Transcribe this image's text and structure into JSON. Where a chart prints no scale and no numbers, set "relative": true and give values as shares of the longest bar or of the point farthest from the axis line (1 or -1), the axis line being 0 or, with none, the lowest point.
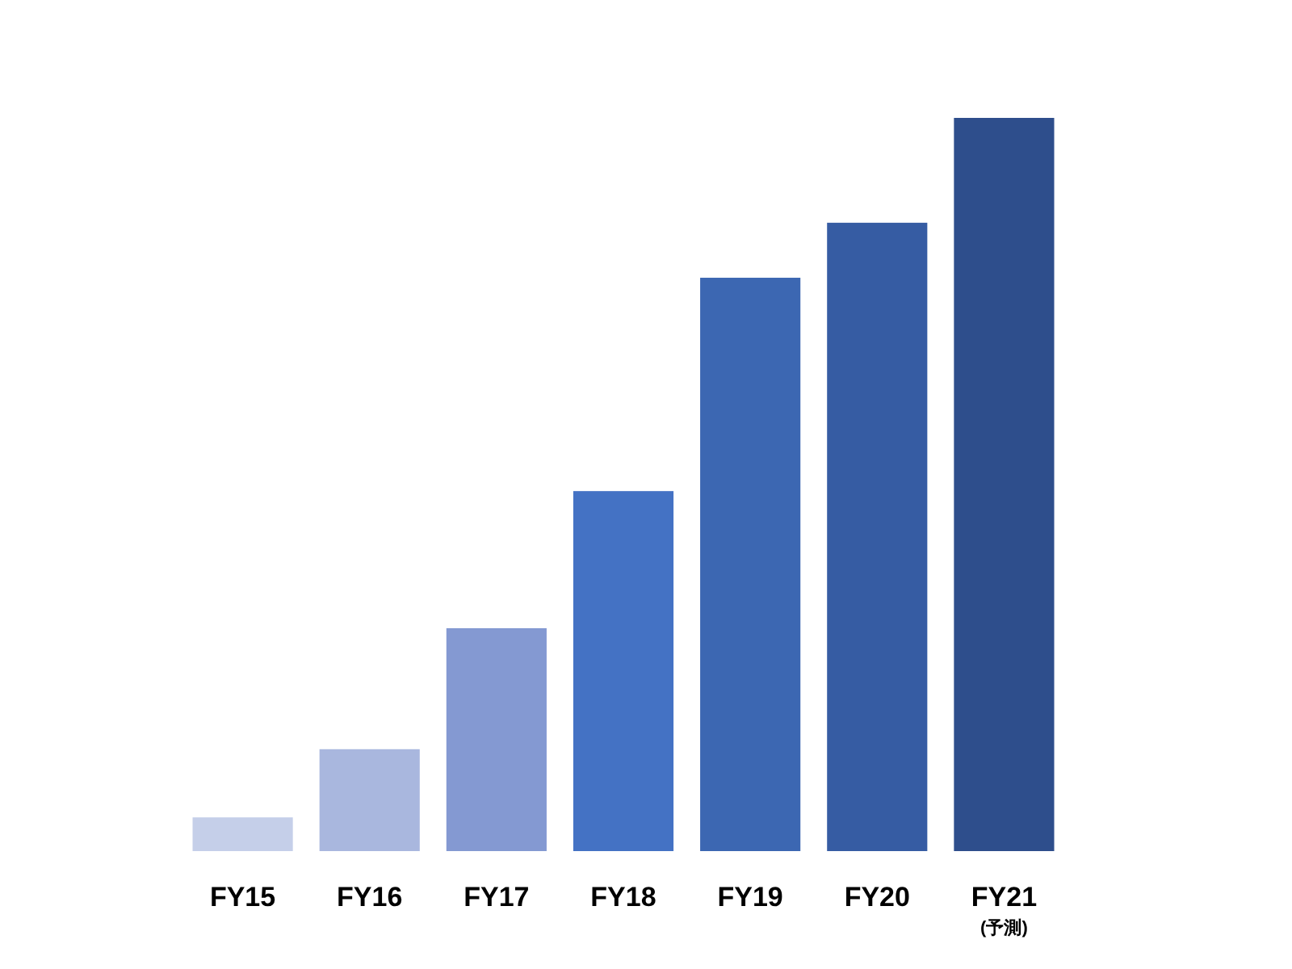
{
  "chart_data": {
    "type": "bar",
    "relative": true,
    "categories": [
      "FY15",
      "FY16",
      "FY17",
      "FY18",
      "FY19",
      "FY20",
      "FY21"
    ],
    "values": [
      0.046,
      0.139,
      0.304,
      0.491,
      0.782,
      0.857,
      1
    ],
    "colors": [
      "#c5cfe9",
      "#a9b7de",
      "#8499d2",
      "#4472c4",
      "#3c67b2",
      "#365ca3",
      "#2e4e8c"
    ],
    "annotations": [
      "(予測)"
    ]
  }
}
